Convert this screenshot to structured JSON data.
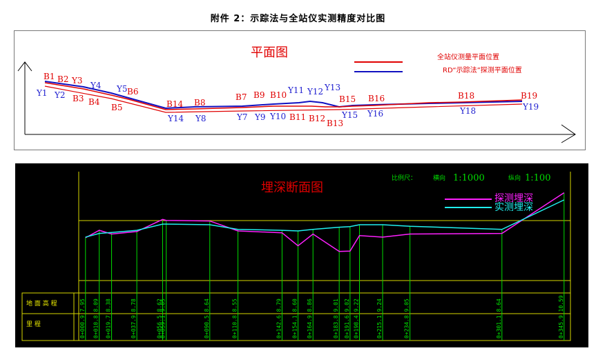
{
  "title": "附件 2：示踪法与全站仪实测精度对比图",
  "plan": {
    "title": "平面图",
    "legend": [
      {
        "label": "全站仪测量平面位置",
        "color": "#e00000"
      },
      {
        "label": "RD“示踪法”探测平面位置",
        "color": "#1010c0"
      }
    ],
    "b_labels": [
      "B1",
      "B2",
      "Y3",
      "B3",
      "B4",
      "B5",
      "B6",
      "B14",
      "B8",
      "B7",
      "B9",
      "B10",
      "B11",
      "B12",
      "B13",
      "B15",
      "B16",
      "B18",
      "B19"
    ],
    "y_labels": [
      "Y1",
      "Y2",
      "Y4",
      "Y5",
      "Y14",
      "Y8",
      "Y7",
      "Y9",
      "Y10",
      "Y11",
      "Y12",
      "Y13",
      "Y15",
      "Y16",
      "Y18",
      "Y19"
    ]
  },
  "section": {
    "title": "埋深断面图",
    "scale_label": "比例尺：",
    "scale_h_label": "横向",
    "scale_h": "1:1000",
    "scale_v_label": "纵向",
    "scale_v": "1:100",
    "legend": [
      {
        "label": "探测埋深",
        "color": "#ff20ff"
      },
      {
        "label": "实测埋深",
        "color": "#20f0f0"
      }
    ],
    "row1": "地 面 高 程",
    "row2": "里       程",
    "chainages": [
      "0+000.9 7.95",
      "0+010.8 8.09",
      "0+019.7 8.38",
      "0+037.9 8.78",
      "0+056.5 8.62",
      "0+059.1 9.05",
      "0+090.5 8.64",
      "0+110.8 8.55",
      "0+142.6 8.79",
      "0+154.1 8.60",
      "0+164.9 8.86",
      "0+183.8 9.01",
      "0+191.6 9.02",
      "0+198.4 9.22",
      "0+215.1 9.24",
      "0+234.8 9.05",
      "0+301.1 8.64",
      "0+345.9 10.59"
    ]
  },
  "chart_data": {
    "type": "line",
    "title": "埋深断面图",
    "x": [
      0.9,
      10.8,
      19.7,
      37.9,
      56.5,
      59.1,
      90.5,
      110.8,
      142.6,
      154.1,
      164.9,
      183.8,
      191.6,
      198.4,
      215.1,
      234.8,
      301.1,
      345.9
    ],
    "series": [
      {
        "name": "探测埋深",
        "color": "#ff20ff",
        "values": [
          1.38,
          1.62,
          1.5,
          1.58,
          1.97,
          1.94,
          1.92,
          1.6,
          1.54,
          1.12,
          1.5,
          0.94,
          0.95,
          1.45,
          1.4,
          1.5,
          1.52,
          2.83
        ]
      },
      {
        "name": "实测埋深",
        "color": "#20f0f0",
        "values": [
          1.4,
          1.52,
          1.55,
          1.62,
          1.82,
          1.82,
          1.8,
          1.65,
          1.62,
          1.6,
          1.65,
          1.72,
          1.74,
          1.8,
          1.8,
          1.75,
          1.65,
          2.6
        ]
      }
    ]
  }
}
